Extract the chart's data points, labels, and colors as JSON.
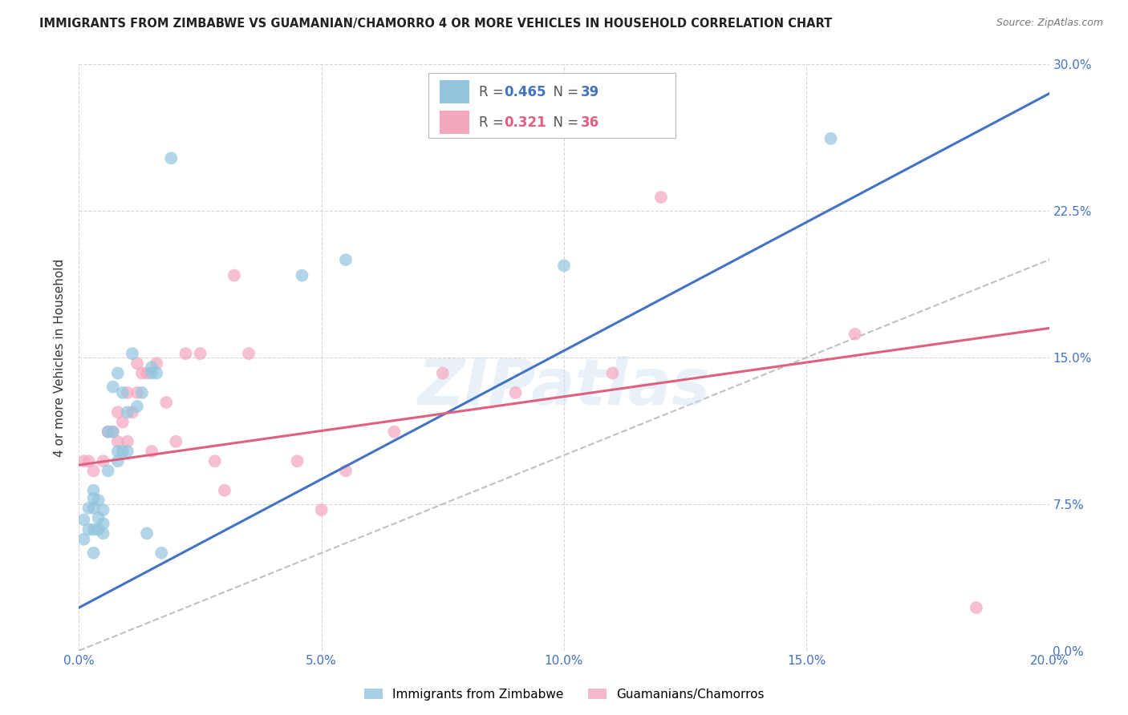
{
  "title": "IMMIGRANTS FROM ZIMBABWE VS GUAMANIAN/CHAMORRO 4 OR MORE VEHICLES IN HOUSEHOLD CORRELATION CHART",
  "source": "Source: ZipAtlas.com",
  "ylabel": "4 or more Vehicles in Household",
  "xlabel_ticks": [
    "0.0%",
    "5.0%",
    "10.0%",
    "15.0%",
    "20.0%"
  ],
  "xlabel_vals": [
    0.0,
    0.05,
    0.1,
    0.15,
    0.2
  ],
  "ylabel_ticks": [
    "0.0%",
    "7.5%",
    "15.0%",
    "22.5%",
    "30.0%"
  ],
  "ylabel_vals": [
    0.0,
    0.075,
    0.15,
    0.225,
    0.3
  ],
  "xlim": [
    0.0,
    0.2
  ],
  "ylim": [
    0.0,
    0.3
  ],
  "blue_R": "0.465",
  "blue_N": "39",
  "pink_R": "0.321",
  "pink_N": "36",
  "blue_color": "#92c5de",
  "pink_color": "#f4a6bd",
  "blue_line_color": "#4472c4",
  "pink_line_color": "#e06080",
  "diagonal_color": "#c0c0c0",
  "legend_blue_label": "Immigrants from Zimbabwe",
  "legend_pink_label": "Guamanians/Chamorros",
  "blue_scatter_x": [
    0.001,
    0.001,
    0.002,
    0.002,
    0.003,
    0.003,
    0.003,
    0.003,
    0.003,
    0.004,
    0.004,
    0.004,
    0.005,
    0.005,
    0.005,
    0.006,
    0.006,
    0.007,
    0.007,
    0.008,
    0.008,
    0.008,
    0.009,
    0.009,
    0.01,
    0.01,
    0.011,
    0.012,
    0.013,
    0.014,
    0.015,
    0.015,
    0.016,
    0.017,
    0.019,
    0.046,
    0.055,
    0.1,
    0.155
  ],
  "blue_scatter_y": [
    0.057,
    0.067,
    0.062,
    0.073,
    0.05,
    0.062,
    0.073,
    0.078,
    0.082,
    0.062,
    0.068,
    0.077,
    0.06,
    0.065,
    0.072,
    0.092,
    0.112,
    0.112,
    0.135,
    0.097,
    0.102,
    0.142,
    0.102,
    0.132,
    0.102,
    0.122,
    0.152,
    0.125,
    0.132,
    0.06,
    0.142,
    0.145,
    0.142,
    0.05,
    0.252,
    0.192,
    0.2,
    0.197,
    0.262
  ],
  "pink_scatter_x": [
    0.001,
    0.002,
    0.003,
    0.005,
    0.006,
    0.007,
    0.008,
    0.008,
    0.009,
    0.01,
    0.01,
    0.011,
    0.012,
    0.012,
    0.013,
    0.014,
    0.015,
    0.016,
    0.018,
    0.02,
    0.022,
    0.025,
    0.028,
    0.03,
    0.032,
    0.035,
    0.045,
    0.05,
    0.055,
    0.065,
    0.075,
    0.09,
    0.11,
    0.12,
    0.16,
    0.185
  ],
  "pink_scatter_y": [
    0.097,
    0.097,
    0.092,
    0.097,
    0.112,
    0.112,
    0.107,
    0.122,
    0.117,
    0.107,
    0.132,
    0.122,
    0.132,
    0.147,
    0.142,
    0.142,
    0.102,
    0.147,
    0.127,
    0.107,
    0.152,
    0.152,
    0.097,
    0.082,
    0.192,
    0.152,
    0.097,
    0.072,
    0.092,
    0.112,
    0.142,
    0.132,
    0.142,
    0.232,
    0.162,
    0.022
  ],
  "blue_line_x0": 0.0,
  "blue_line_y0": 0.022,
  "blue_line_x1": 0.2,
  "blue_line_y1": 0.285,
  "pink_line_x0": 0.0,
  "pink_line_y0": 0.095,
  "pink_line_x1": 0.2,
  "pink_line_y1": 0.165,
  "watermark_text": "ZIPatlas",
  "background_color": "#ffffff",
  "grid_color": "#cccccc",
  "tick_color": "#4472c4",
  "title_color": "#222222",
  "source_color": "#777777"
}
